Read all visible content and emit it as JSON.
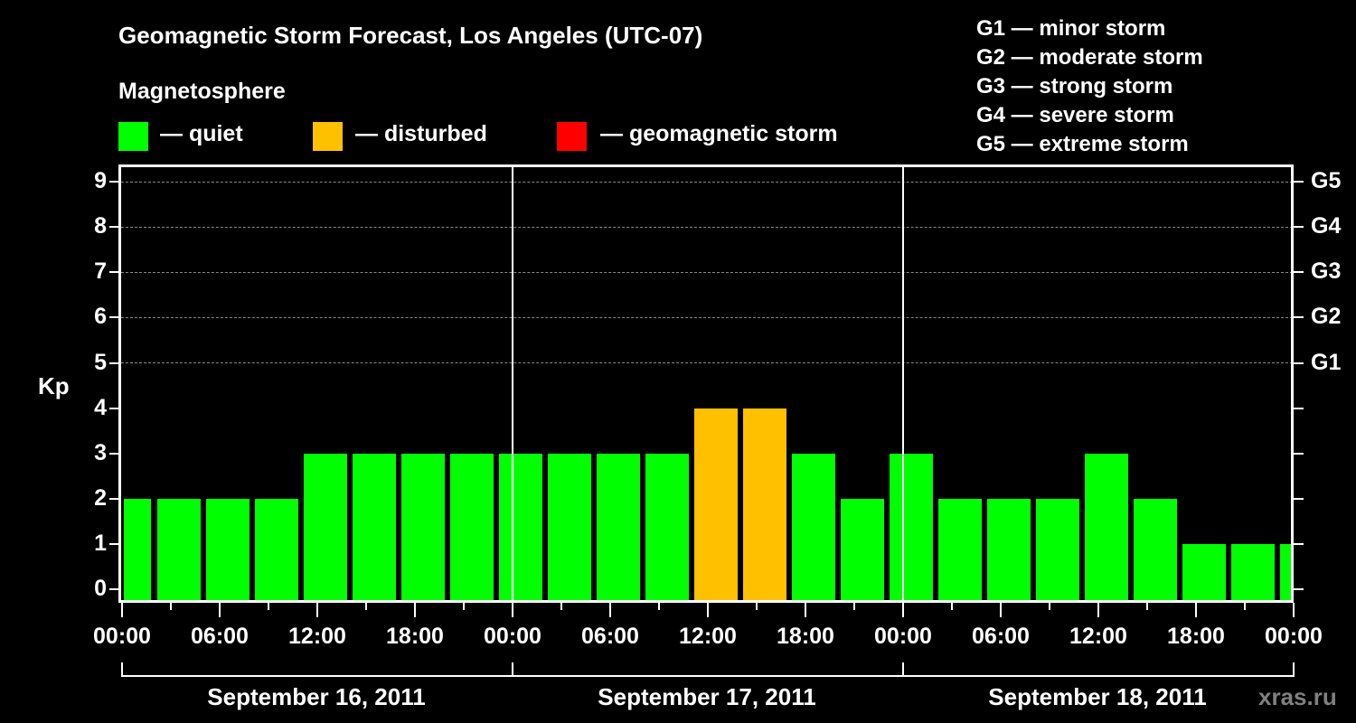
{
  "title": "Geomagnetic Storm Forecast, Los Angeles (UTC-07)",
  "legend": {
    "heading": "Magnetosphere",
    "items": [
      {
        "label": "— quiet",
        "color": "#00ff00"
      },
      {
        "label": "— disturbed",
        "color": "#ffc000"
      },
      {
        "label": "— geomagnetic storm",
        "color": "#ff0000"
      }
    ]
  },
  "g_scale": [
    "G1 — minor storm",
    "G2 — moderate storm",
    "G3 — strong storm",
    "G4 — severe storm",
    "G5 — extreme storm"
  ],
  "axes": {
    "ylabel": "Kp",
    "yticks": [
      "0",
      "1",
      "2",
      "3",
      "4",
      "5",
      "6",
      "7",
      "8",
      "9"
    ],
    "right_ticks": {
      "5": "G1",
      "6": "G2",
      "7": "G3",
      "8": "G4",
      "9": "G5"
    },
    "xticks": [
      "00:00",
      "06:00",
      "12:00",
      "18:00",
      "00:00",
      "06:00",
      "12:00",
      "18:00",
      "00:00",
      "06:00",
      "12:00",
      "18:00",
      "00:00"
    ],
    "dates": [
      "September 16, 2011",
      "September 17, 2011",
      "September 18, 2011"
    ]
  },
  "credit": "xras.ru",
  "chart_data": {
    "type": "bar",
    "title": "Geomagnetic Storm Forecast, Los Angeles (UTC-07)",
    "xlabel": "",
    "ylabel": "Kp",
    "ylim": [
      0,
      9
    ],
    "grid": "dashed horizontal at Kp 5-9",
    "legend_position": "top",
    "bar_interval_hours": 3,
    "x": [
      "Sep 16 ~01:00",
      "Sep 16 04:00",
      "Sep 16 07:00",
      "Sep 16 10:00",
      "Sep 16 13:00",
      "Sep 16 16:00",
      "Sep 16 19:00",
      "Sep 16 22:00",
      "Sep 17 01:00",
      "Sep 17 04:00",
      "Sep 17 07:00",
      "Sep 17 10:00",
      "Sep 17 13:00",
      "Sep 17 16:00",
      "Sep 17 19:00",
      "Sep 17 22:00",
      "Sep 18 01:00",
      "Sep 18 04:00",
      "Sep 18 07:00",
      "Sep 18 10:00",
      "Sep 18 13:00",
      "Sep 18 16:00",
      "Sep 18 19:00",
      "Sep 18 22:00",
      "Sep 19 ~00:00"
    ],
    "values": [
      2,
      2,
      2,
      2,
      3,
      3,
      3,
      3,
      3,
      3,
      3,
      3,
      4,
      4,
      3,
      2,
      3,
      2,
      2,
      2,
      3,
      2,
      1,
      1,
      1
    ],
    "status": [
      "quiet",
      "quiet",
      "quiet",
      "quiet",
      "quiet",
      "quiet",
      "quiet",
      "quiet",
      "quiet",
      "quiet",
      "quiet",
      "quiet",
      "disturbed",
      "disturbed",
      "quiet",
      "quiet",
      "quiet",
      "quiet",
      "quiet",
      "quiet",
      "quiet",
      "quiet",
      "quiet",
      "quiet",
      "quiet"
    ],
    "colors": {
      "quiet": "#00ff00",
      "disturbed": "#ffc000",
      "storm": "#ff0000"
    },
    "right_axis_labels": {
      "5": "G1",
      "6": "G2",
      "7": "G3",
      "8": "G4",
      "9": "G5"
    }
  }
}
